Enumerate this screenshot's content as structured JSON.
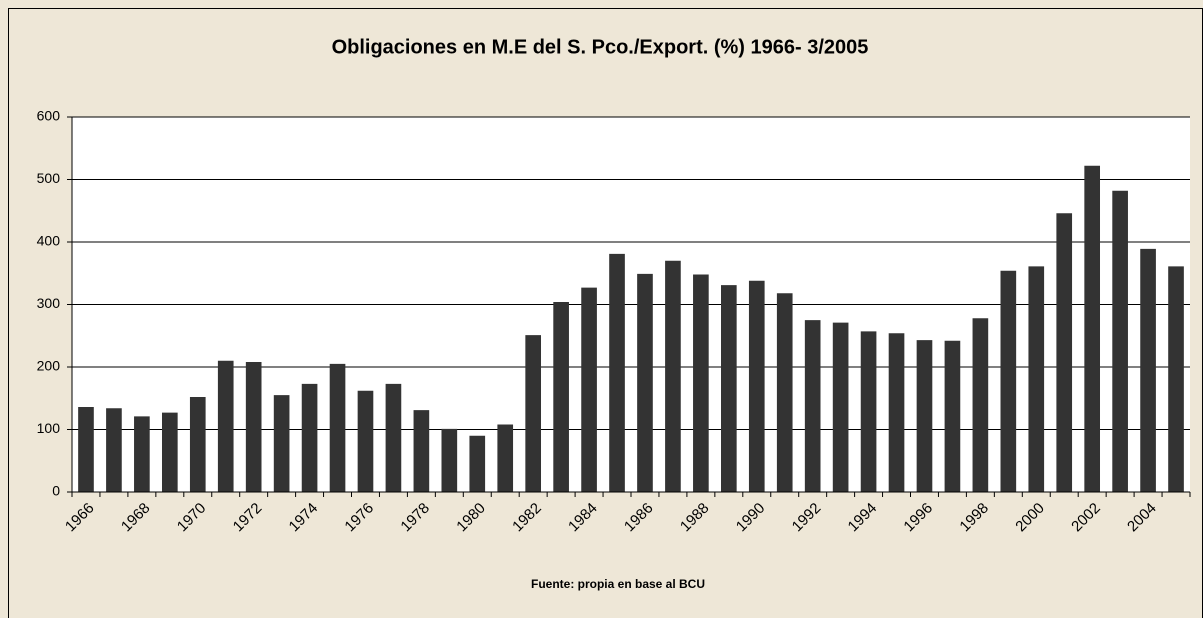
{
  "chart_data": {
    "type": "bar",
    "title": "Obligaciones en M.E del S. Pco./Export. (%) 1966- 3/2005",
    "note": "Fuente: propia en base al BCU",
    "categories": [
      "1966",
      null,
      "1968",
      null,
      "1970",
      null,
      "1972",
      null,
      "1974",
      null,
      "1976",
      null,
      "1978",
      null,
      "1980",
      null,
      "1982",
      null,
      "1984",
      null,
      "1986",
      null,
      "1988",
      null,
      "1990",
      null,
      "1992",
      null,
      "1994",
      null,
      "1996",
      null,
      "1998",
      null,
      "2000",
      null,
      "2002",
      null,
      "2004",
      null
    ],
    "values": [
      136,
      134,
      121,
      127,
      152,
      210,
      208,
      155,
      173,
      205,
      162,
      173,
      131,
      101,
      90,
      108,
      251,
      304,
      327,
      381,
      349,
      370,
      348,
      331,
      338,
      318,
      275,
      271,
      257,
      254,
      243,
      242,
      278,
      354,
      361,
      446,
      522,
      482,
      389,
      361
    ],
    "color": "#333333",
    "ylim": [
      0,
      600
    ],
    "yticks": [
      0,
      100,
      200,
      300,
      400,
      500,
      600
    ],
    "grid": true
  }
}
